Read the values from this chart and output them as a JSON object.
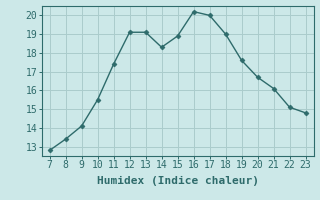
{
  "x": [
    7,
    8,
    9,
    10,
    11,
    12,
    13,
    14,
    15,
    16,
    17,
    18,
    19,
    20,
    21,
    22,
    23
  ],
  "y": [
    12.8,
    13.4,
    14.1,
    15.5,
    17.4,
    19.1,
    19.1,
    18.3,
    18.9,
    20.2,
    20.0,
    19.0,
    17.6,
    16.7,
    16.1,
    15.1,
    14.8
  ],
  "line_color": "#2e6b6b",
  "marker": "D",
  "marker_size": 2.5,
  "xlabel": "Humidex (Indice chaleur)",
  "xlim": [
    6.5,
    23.5
  ],
  "ylim": [
    12.5,
    20.5
  ],
  "yticks": [
    13,
    14,
    15,
    16,
    17,
    18,
    19,
    20
  ],
  "xticks": [
    7,
    8,
    9,
    10,
    11,
    12,
    13,
    14,
    15,
    16,
    17,
    18,
    19,
    20,
    21,
    22,
    23
  ],
  "bg_color": "#cce8e8",
  "grid_color": "#aacccc",
  "xlabel_fontsize": 8,
  "tick_fontsize": 7,
  "tick_color": "#2e6b6b",
  "line_width": 1.0,
  "spine_color": "#2e6b6b"
}
